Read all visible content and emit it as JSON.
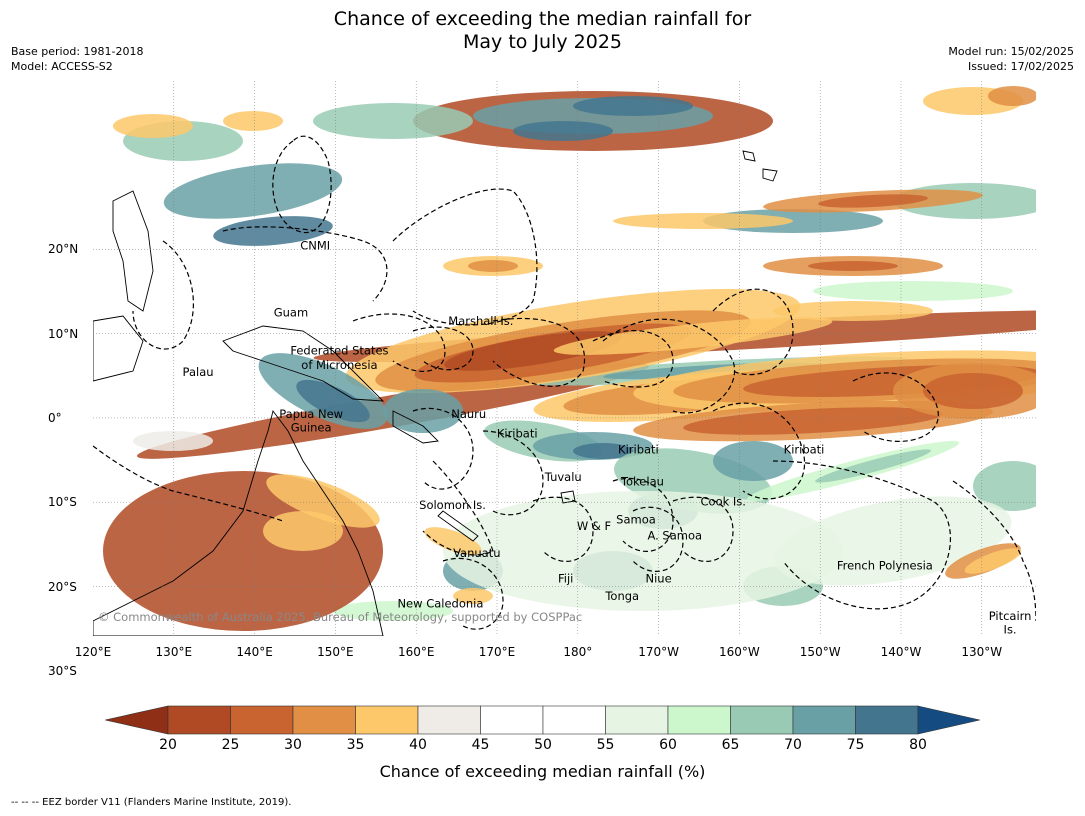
{
  "title_line1": "Chance of exceeding the median rainfall for",
  "title_line2": "May to July 2025",
  "meta_left": {
    "base_period": "Base period: 1981-2018",
    "model": "Model: ACCESS-S2"
  },
  "meta_right": {
    "model_run": "Model run: 15/02/2025",
    "issued": "Issued: 17/02/2025"
  },
  "copyright": "© Commonwealth of Australia 2025, Bureau of Meteorology, supported by COSPPac",
  "lon_labels": [
    "120°E",
    "130°E",
    "140°E",
    "150°E",
    "160°E",
    "170°E",
    "180°",
    "170°W",
    "160°W",
    "150°W",
    "140°W",
    "130°W"
  ],
  "lat_labels": [
    "20°N",
    "10°N",
    "0°",
    "10°S",
    "20°S",
    "30°S"
  ],
  "region_labels": [
    {
      "name": "CNMI",
      "lon": 147.5,
      "lat": 20
    },
    {
      "name": "Guam",
      "lon": 144.5,
      "lat": 12
    },
    {
      "name": "Marshall Is.",
      "lon": 168,
      "lat": 11
    },
    {
      "name": "Federated States",
      "lon": 150.5,
      "lat": 7.5
    },
    {
      "name": "of Micronesia",
      "lon": 150.5,
      "lat": 5.8
    },
    {
      "name": "Palau",
      "lon": 133,
      "lat": 5
    },
    {
      "name": "Papua New",
      "lon": 147,
      "lat": 0
    },
    {
      "name": "Guinea",
      "lon": 147,
      "lat": -1.6
    },
    {
      "name": "Nauru",
      "lon": 166.5,
      "lat": 0
    },
    {
      "name": "Kiribati",
      "lon": 172.5,
      "lat": -2.3
    },
    {
      "name": "Kiribati",
      "lon": 187.5,
      "lat": -4.2
    },
    {
      "name": "Kiribati",
      "lon": 208,
      "lat": -4.2
    },
    {
      "name": "Tuvalu",
      "lon": 178.2,
      "lat": -7.5
    },
    {
      "name": "Tokelau",
      "lon": 188,
      "lat": -8
    },
    {
      "name": "Cook Is.",
      "lon": 198,
      "lat": -10.4
    },
    {
      "name": "Solomon Is.",
      "lon": 164.5,
      "lat": -10.8
    },
    {
      "name": "Samoa",
      "lon": 187.2,
      "lat": -12.5
    },
    {
      "name": "W & F",
      "lon": 182,
      "lat": -13.3
    },
    {
      "name": "A. Samoa",
      "lon": 192,
      "lat": -14.4
    },
    {
      "name": "Vanuatu",
      "lon": 167.5,
      "lat": -16.5
    },
    {
      "name": "Fiji",
      "lon": 178.5,
      "lat": -19.5
    },
    {
      "name": "Niue",
      "lon": 190,
      "lat": -19.5
    },
    {
      "name": "Tonga",
      "lon": 185.5,
      "lat": -21.6
    },
    {
      "name": "French Polynesia",
      "lon": 218,
      "lat": -18
    },
    {
      "name": "New Caledonia",
      "lon": 163,
      "lat": -22.5
    },
    {
      "name": "Pitcairn",
      "lon": 233.5,
      "lat": -24
    },
    {
      "name": "Is.",
      "lon": 233.5,
      "lat": -25.6
    }
  ],
  "colorbar": {
    "ticks": [
      "20",
      "25",
      "30",
      "35",
      "40",
      "45",
      "50",
      "55",
      "60",
      "65",
      "70",
      "75",
      "80"
    ],
    "colors": [
      "#8e2f16",
      "#b04a24",
      "#c96330",
      "#e08f44",
      "#fdc86a",
      "#efece7",
      "#ffffff",
      "#ffffff",
      "#e6f4e3",
      "#ccf7cc",
      "#99cbb4",
      "#69a0a6",
      "#44758e",
      "#144c82"
    ],
    "label": "Chance of exceeding median rainfall (%)"
  },
  "footnote": "-- -- -- EEZ border V11 (Flanders Marine Institute, 2019)."
}
